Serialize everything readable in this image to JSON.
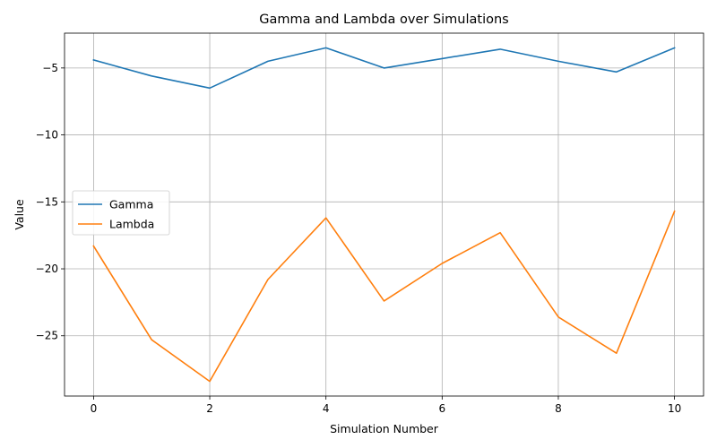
{
  "chart_data": {
    "type": "line",
    "title": "Gamma and Lambda over Simulations",
    "xlabel": "Simulation Number",
    "ylabel": "Value",
    "x": [
      0,
      1,
      2,
      3,
      4,
      5,
      6,
      7,
      8,
      9,
      10
    ],
    "series": [
      {
        "name": "Gamma",
        "color": "#1f77b4",
        "values": [
          -4.4,
          -5.6,
          -6.5,
          -4.5,
          -3.5,
          -5.0,
          -4.3,
          -3.6,
          -4.5,
          -5.3,
          -3.5
        ]
      },
      {
        "name": "Lambda",
        "color": "#ff7f0e",
        "values": [
          -18.3,
          -25.3,
          -28.4,
          -20.8,
          -16.2,
          -22.4,
          -19.6,
          -17.3,
          -23.6,
          -26.3,
          -15.7
        ]
      }
    ],
    "xlim": [
      -0.5,
      10.5
    ],
    "ylim": [
      -29.5,
      -2.4
    ],
    "xticks": [
      0,
      2,
      4,
      6,
      8,
      10
    ],
    "yticks": [
      -25,
      -20,
      -15,
      -10,
      -5
    ],
    "grid": true,
    "legend_position": "center-left"
  }
}
